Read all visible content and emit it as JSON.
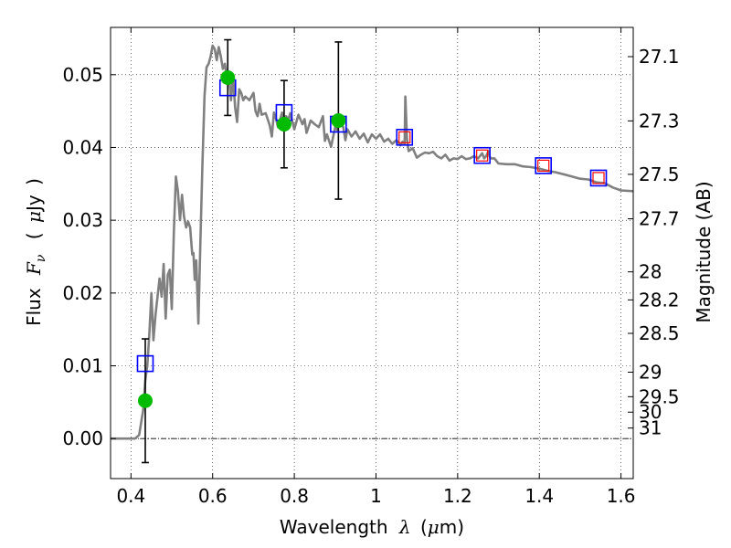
{
  "chart_data": {
    "type": "scatter",
    "xlabel_parts": [
      "Wavelength",
      "λ",
      "(",
      "μ",
      "m)"
    ],
    "ylabel_parts": [
      "Flux",
      "F",
      "ν",
      "(",
      "μ",
      "Jy",
      ")"
    ],
    "y2label": "Magnitude (AB)",
    "xlim": [
      0.35,
      1.63
    ],
    "ylim": [
      -0.0055,
      0.0565
    ],
    "x_ticks": [
      0.4,
      0.6,
      0.8,
      1.0,
      1.2,
      1.4,
      1.6
    ],
    "x_tick_labels": [
      "0.4",
      "0.6",
      "0.8",
      "1",
      "1.2",
      "1.4",
      "1.6"
    ],
    "y_ticks": [
      0.0,
      0.01,
      0.02,
      0.03,
      0.04,
      0.05
    ],
    "y_tick_labels": [
      "0.00",
      "0.01",
      "0.02",
      "0.03",
      "0.04",
      "0.05"
    ],
    "magnitude_ticks": [
      {
        "mag": 27.1,
        "label": "27.1"
      },
      {
        "mag": 27.3,
        "label": "27.3"
      },
      {
        "mag": 27.5,
        "label": "27.5"
      },
      {
        "mag": 27.7,
        "label": "27.7"
      },
      {
        "mag": 28,
        "label": "28"
      },
      {
        "mag": 28.2,
        "label": "28.2"
      },
      {
        "mag": 28.5,
        "label": "28.5"
      },
      {
        "mag": 29,
        "label": "29"
      },
      {
        "mag": 29.5,
        "label": "29.5"
      },
      {
        "mag": 30,
        "label": "30"
      },
      {
        "mag": 31,
        "label": "31"
      }
    ],
    "grid": true,
    "colors": {
      "model": "#808080",
      "observed": "#00bb00",
      "model_box": "#0000ff",
      "model_box_inner": "#ff0000",
      "errorbar": "#000000"
    },
    "series": [
      {
        "kind": "line",
        "points": [
          [
            0.35,
            0.0
          ],
          [
            0.41,
            0.0
          ],
          [
            0.42,
            0.0005
          ],
          [
            0.43,
            0.004
          ],
          [
            0.435,
            0.008
          ],
          [
            0.44,
            0.01
          ],
          [
            0.445,
            0.0145
          ],
          [
            0.45,
            0.02
          ],
          [
            0.455,
            0.0135
          ],
          [
            0.46,
            0.017
          ],
          [
            0.47,
            0.022
          ],
          [
            0.475,
            0.0195
          ],
          [
            0.48,
            0.024
          ],
          [
            0.485,
            0.0165
          ],
          [
            0.49,
            0.0225
          ],
          [
            0.495,
            0.0232
          ],
          [
            0.5,
            0.0178
          ],
          [
            0.505,
            0.0285
          ],
          [
            0.51,
            0.036
          ],
          [
            0.515,
            0.034
          ],
          [
            0.52,
            0.03
          ],
          [
            0.525,
            0.0335
          ],
          [
            0.53,
            0.0305
          ],
          [
            0.535,
            0.029
          ],
          [
            0.54,
            0.0298
          ],
          [
            0.545,
            0.029
          ],
          [
            0.55,
            0.0253
          ],
          [
            0.553,
            0.0255
          ],
          [
            0.556,
            0.0218
          ],
          [
            0.56,
            0.0245
          ],
          [
            0.565,
            0.0158
          ],
          [
            0.57,
            0.027
          ],
          [
            0.575,
            0.0375
          ],
          [
            0.58,
            0.047
          ],
          [
            0.585,
            0.051
          ],
          [
            0.59,
            0.0515
          ],
          [
            0.595,
            0.0525
          ],
          [
            0.6,
            0.054
          ],
          [
            0.605,
            0.0535
          ],
          [
            0.61,
            0.052
          ],
          [
            0.615,
            0.0538
          ],
          [
            0.62,
            0.0525
          ],
          [
            0.625,
            0.0508
          ],
          [
            0.63,
            0.0515
          ],
          [
            0.635,
            0.0495
          ],
          [
            0.64,
            0.05
          ],
          [
            0.645,
            0.0465
          ],
          [
            0.65,
            0.0498
          ],
          [
            0.655,
            0.0455
          ],
          [
            0.66,
            0.0435
          ],
          [
            0.665,
            0.048
          ],
          [
            0.67,
            0.0475
          ],
          [
            0.675,
            0.0465
          ],
          [
            0.68,
            0.047
          ],
          [
            0.69,
            0.0465
          ],
          [
            0.7,
            0.0475
          ],
          [
            0.705,
            0.045
          ],
          [
            0.71,
            0.0443
          ],
          [
            0.715,
            0.046
          ],
          [
            0.72,
            0.0445
          ],
          [
            0.73,
            0.0447
          ],
          [
            0.74,
            0.043
          ],
          [
            0.745,
            0.0415
          ],
          [
            0.75,
            0.0448
          ],
          [
            0.755,
            0.044
          ],
          [
            0.76,
            0.0428
          ],
          [
            0.77,
            0.0448
          ],
          [
            0.775,
            0.0435
          ],
          [
            0.78,
            0.0443
          ],
          [
            0.785,
            0.0437
          ],
          [
            0.79,
            0.0447
          ],
          [
            0.8,
            0.0425
          ],
          [
            0.81,
            0.0445
          ],
          [
            0.82,
            0.0432
          ],
          [
            0.825,
            0.0439
          ],
          [
            0.83,
            0.042
          ],
          [
            0.84,
            0.0437
          ],
          [
            0.85,
            0.0432
          ],
          [
            0.86,
            0.0428
          ],
          [
            0.87,
            0.0443
          ],
          [
            0.875,
            0.0409
          ],
          [
            0.88,
            0.0418
          ],
          [
            0.89,
            0.0401
          ],
          [
            0.9,
            0.0428
          ],
          [
            0.905,
            0.0424
          ],
          [
            0.91,
            0.0434
          ],
          [
            0.92,
            0.0428
          ],
          [
            0.925,
            0.041
          ],
          [
            0.93,
            0.0425
          ],
          [
            0.94,
            0.0415
          ],
          [
            0.95,
            0.0422
          ],
          [
            0.96,
            0.0412
          ],
          [
            0.97,
            0.0419
          ],
          [
            0.98,
            0.0407
          ],
          [
            0.99,
            0.0418
          ],
          [
            1.0,
            0.0412
          ],
          [
            1.01,
            0.0418
          ],
          [
            1.02,
            0.0408
          ],
          [
            1.03,
            0.0412
          ],
          [
            1.04,
            0.0405
          ],
          [
            1.05,
            0.041
          ],
          [
            1.06,
            0.0403
          ],
          [
            1.065,
            0.0408
          ],
          [
            1.07,
            0.0405
          ],
          [
            1.072,
            0.047
          ],
          [
            1.076,
            0.0412
          ],
          [
            1.08,
            0.0395
          ],
          [
            1.09,
            0.0399
          ],
          [
            1.1,
            0.0386
          ],
          [
            1.11,
            0.039
          ],
          [
            1.12,
            0.0393
          ],
          [
            1.13,
            0.0392
          ],
          [
            1.14,
            0.0394
          ],
          [
            1.15,
            0.0388
          ],
          [
            1.16,
            0.0385
          ],
          [
            1.17,
            0.039
          ],
          [
            1.18,
            0.0382
          ],
          [
            1.19,
            0.0385
          ],
          [
            1.2,
            0.0384
          ],
          [
            1.21,
            0.0388
          ],
          [
            1.22,
            0.0384
          ],
          [
            1.23,
            0.0385
          ],
          [
            1.24,
            0.0388
          ],
          [
            1.25,
            0.0385
          ],
          [
            1.26,
            0.0392
          ],
          [
            1.265,
            0.0385
          ],
          [
            1.27,
            0.0388
          ],
          [
            1.275,
            0.0395
          ],
          [
            1.28,
            0.0385
          ],
          [
            1.29,
            0.0385
          ],
          [
            1.3,
            0.0378
          ],
          [
            1.32,
            0.0377
          ],
          [
            1.34,
            0.0377
          ],
          [
            1.36,
            0.0374
          ],
          [
            1.38,
            0.0373
          ],
          [
            1.4,
            0.0371
          ],
          [
            1.42,
            0.0368
          ],
          [
            1.44,
            0.0366
          ],
          [
            1.46,
            0.0363
          ],
          [
            1.48,
            0.036
          ],
          [
            1.5,
            0.0357
          ],
          [
            1.52,
            0.0356
          ],
          [
            1.54,
            0.0352
          ],
          [
            1.56,
            0.0351
          ],
          [
            1.58,
            0.0345
          ],
          [
            1.6,
            0.0341
          ],
          [
            1.63,
            0.034
          ]
        ]
      },
      {
        "kind": "model_boxes",
        "points": [
          [
            0.435,
            0.0103
          ],
          [
            0.637,
            0.0482
          ],
          [
            0.775,
            0.0448
          ],
          [
            0.908,
            0.0432
          ],
          [
            1.07,
            0.0414
          ],
          [
            1.26,
            0.0389
          ],
          [
            1.41,
            0.0375
          ],
          [
            1.545,
            0.0358
          ]
        ]
      },
      {
        "kind": "observed_points",
        "points": [
          [
            0.435,
            0.0052,
            0.0085
          ],
          [
            0.637,
            0.0496,
            0.0052
          ],
          [
            0.775,
            0.0432,
            0.006
          ],
          [
            0.908,
            0.0437,
            0.0108
          ]
        ]
      }
    ]
  }
}
